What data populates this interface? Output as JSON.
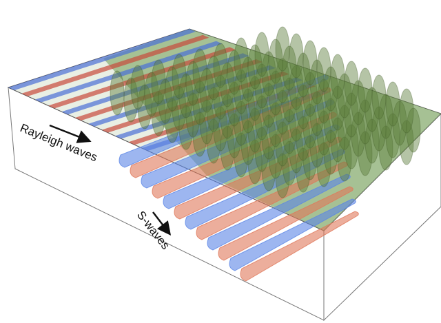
{
  "labels": {
    "rayleigh": "Rayleigh waves",
    "s_waves": "S-waves"
  }
}
